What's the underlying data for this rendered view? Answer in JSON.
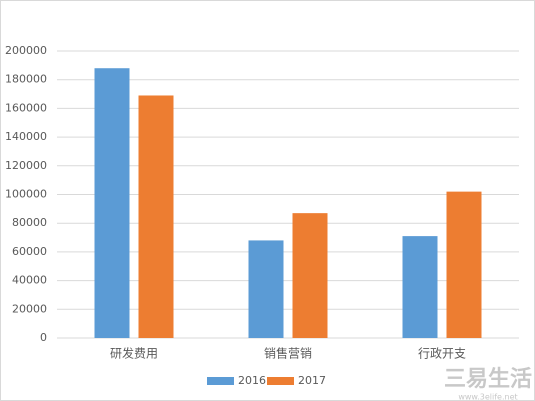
{
  "chart_data": {
    "type": "bar",
    "categories": [
      "研发费用",
      "销售营销",
      "行政开支"
    ],
    "series": [
      {
        "name": "2016",
        "color": "#5b9bd5",
        "values": [
          188000,
          68000,
          71000
        ]
      },
      {
        "name": "2017",
        "color": "#ed7d31",
        "values": [
          169000,
          87000,
          102000
        ]
      }
    ],
    "ylim": [
      0,
      200000
    ],
    "yticks": [
      0,
      20000,
      40000,
      60000,
      80000,
      100000,
      120000,
      140000,
      160000,
      180000,
      200000
    ],
    "grid": true,
    "legend": "bottom",
    "watermark": "三易生活",
    "watermark_url": "www.3elife.net"
  }
}
